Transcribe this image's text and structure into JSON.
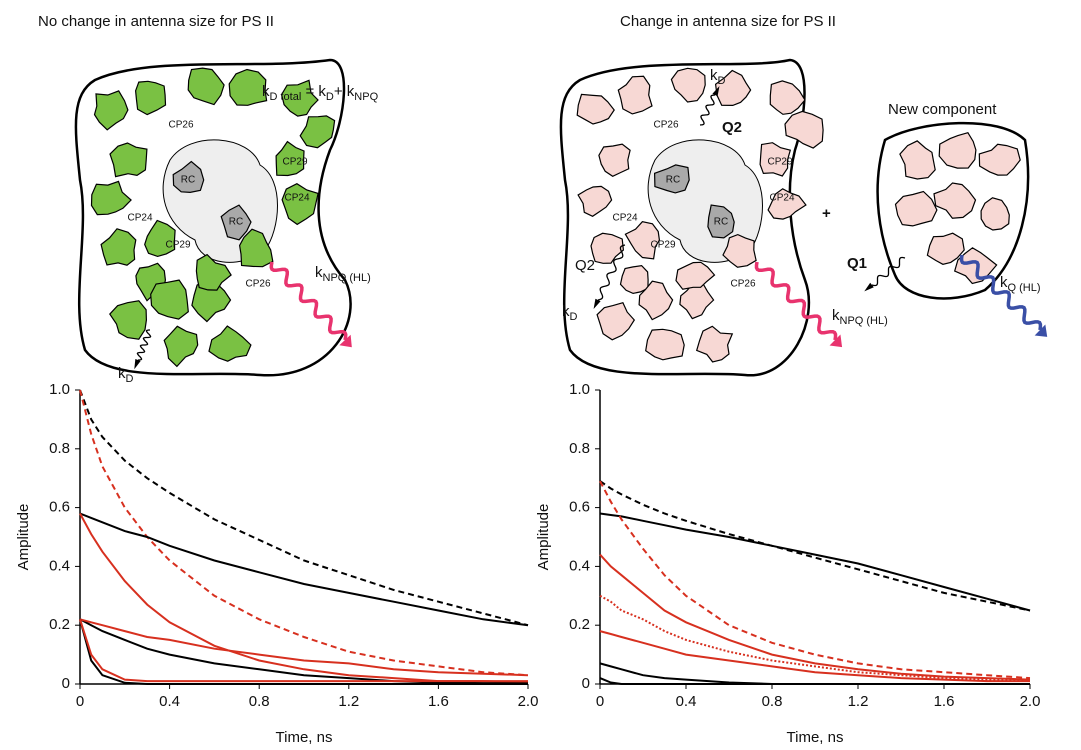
{
  "panels": [
    {
      "title": "No change in antenna size for PS II",
      "equation": [
        "k",
        "D total",
        " = k",
        "D",
        "+ k",
        "NPQ"
      ],
      "proteins": [
        "CP26",
        "CP29",
        "CP24",
        "CP24",
        "CP29",
        "CP26",
        "RC",
        "RC"
      ],
      "rates": [
        [
          "k",
          "D"
        ],
        [
          "k",
          "NPQ (HL)"
        ]
      ]
    },
    {
      "title": "Change in antenna size for PS II",
      "proteins": [
        "CP26",
        "CP29",
        "CP24",
        "CP24",
        "CP29",
        "CP26",
        "RC",
        "RC"
      ],
      "rates": [
        [
          "k",
          "D"
        ],
        [
          "k",
          "D"
        ],
        [
          "k",
          "NPQ (HL)"
        ],
        [
          "k",
          "Q (HL)"
        ]
      ],
      "quenchers": [
        "Q2",
        "Q2",
        "Q1"
      ],
      "plus": "+",
      "new_component": "New component"
    }
  ],
  "chart_data": [
    {
      "type": "line",
      "ylabel": "Amplitude",
      "xlabel": "Time, ns",
      "xlim": [
        0,
        2
      ],
      "ylim": [
        0,
        1
      ],
      "xticks": [
        0,
        0.4,
        0.8,
        1.2,
        1.6,
        {
          "value": 2,
          "label": "2.0"
        }
      ],
      "yticks": [
        0,
        0.2,
        0.4,
        0.6,
        0.8,
        {
          "value": 1,
          "label": "1.0"
        }
      ],
      "x": [
        0,
        0.05,
        0.1,
        0.2,
        0.3,
        0.4,
        0.6,
        0.8,
        1.0,
        1.2,
        1.4,
        1.6,
        1.8,
        2.0
      ],
      "series": [
        {
          "color": "#000000",
          "style": "dashed",
          "values": [
            1.0,
            0.9,
            0.84,
            0.76,
            0.7,
            0.65,
            0.56,
            0.49,
            0.42,
            0.37,
            0.32,
            0.28,
            0.24,
            0.2
          ]
        },
        {
          "color": "#d7301f",
          "style": "dashed",
          "values": [
            1.0,
            0.85,
            0.74,
            0.6,
            0.5,
            0.42,
            0.3,
            0.22,
            0.16,
            0.11,
            0.08,
            0.06,
            0.04,
            0.03
          ]
        },
        {
          "color": "#000000",
          "style": "solid",
          "values": [
            0.58,
            0.565,
            0.55,
            0.52,
            0.5,
            0.47,
            0.42,
            0.38,
            0.34,
            0.31,
            0.28,
            0.25,
            0.22,
            0.2
          ]
        },
        {
          "color": "#d7301f",
          "style": "solid",
          "values": [
            0.58,
            0.51,
            0.45,
            0.35,
            0.27,
            0.21,
            0.13,
            0.08,
            0.05,
            0.03,
            0.02,
            0.01,
            0.01,
            0.005
          ]
        },
        {
          "color": "#000000",
          "style": "solid",
          "values": [
            0.22,
            0.2,
            0.18,
            0.15,
            0.12,
            0.1,
            0.07,
            0.05,
            0.03,
            0.02,
            0.01,
            0.005,
            0.003,
            0.002
          ]
        },
        {
          "color": "#d7301f",
          "style": "solid",
          "values": [
            0.22,
            0.21,
            0.2,
            0.18,
            0.16,
            0.15,
            0.12,
            0.1,
            0.08,
            0.07,
            0.05,
            0.04,
            0.035,
            0.03
          ]
        },
        {
          "color": "#000000",
          "style": "solid",
          "values": [
            0.22,
            0.08,
            0.03,
            0.004,
            0,
            0,
            0,
            0,
            0,
            0,
            0,
            0,
            0,
            0
          ]
        },
        {
          "color": "#d7301f",
          "style": "solid",
          "values": [
            0.22,
            0.1,
            0.05,
            0.015,
            0.01,
            0.01,
            0.01,
            0.01,
            0.01,
            0.01,
            0.01,
            0.01,
            0.01,
            0.01
          ]
        }
      ]
    },
    {
      "type": "line",
      "ylabel": "Amplitude",
      "xlabel": "Time, ns",
      "xlim": [
        0,
        2
      ],
      "ylim": [
        0,
        1
      ],
      "xticks": [
        0,
        0.4,
        0.8,
        1.2,
        1.6,
        {
          "value": 2,
          "label": "2.0"
        }
      ],
      "yticks": [
        0,
        0.2,
        0.4,
        0.6,
        0.8,
        {
          "value": 1,
          "label": "1.0"
        }
      ],
      "x": [
        0,
        0.05,
        0.1,
        0.2,
        0.3,
        0.4,
        0.6,
        0.8,
        1.0,
        1.2,
        1.4,
        1.6,
        1.8,
        2.0
      ],
      "series": [
        {
          "color": "#000000",
          "style": "dashed",
          "values": [
            0.69,
            0.665,
            0.645,
            0.61,
            0.58,
            0.555,
            0.51,
            0.47,
            0.43,
            0.39,
            0.35,
            0.31,
            0.28,
            0.25
          ]
        },
        {
          "color": "#000000",
          "style": "solid",
          "values": [
            0.58,
            0.575,
            0.57,
            0.555,
            0.54,
            0.525,
            0.5,
            0.47,
            0.44,
            0.41,
            0.37,
            0.33,
            0.29,
            0.25
          ]
        },
        {
          "color": "#d7301f",
          "style": "dashed",
          "values": [
            0.69,
            0.62,
            0.56,
            0.46,
            0.37,
            0.3,
            0.2,
            0.14,
            0.1,
            0.07,
            0.05,
            0.04,
            0.03,
            0.02
          ]
        },
        {
          "color": "#d7301f",
          "style": "solid",
          "values": [
            0.44,
            0.4,
            0.37,
            0.31,
            0.25,
            0.21,
            0.15,
            0.1,
            0.07,
            0.05,
            0.035,
            0.025,
            0.02,
            0.015
          ]
        },
        {
          "color": "#d7301f",
          "style": "dotted",
          "values": [
            0.3,
            0.28,
            0.25,
            0.22,
            0.18,
            0.15,
            0.11,
            0.08,
            0.06,
            0.04,
            0.03,
            0.02,
            0.015,
            0.01
          ]
        },
        {
          "color": "#d7301f",
          "style": "solid",
          "values": [
            0.18,
            0.17,
            0.16,
            0.14,
            0.12,
            0.1,
            0.08,
            0.06,
            0.04,
            0.03,
            0.02,
            0.015,
            0.01,
            0.01
          ]
        },
        {
          "color": "#000000",
          "style": "solid",
          "values": [
            0.07,
            0.06,
            0.05,
            0.03,
            0.02,
            0.015,
            0.005,
            0,
            0,
            0,
            0,
            0,
            0,
            0
          ]
        },
        {
          "color": "#000000",
          "style": "solid",
          "values": [
            0.02,
            0.005,
            0,
            0,
            0,
            0,
            0,
            0,
            0,
            0,
            0,
            0,
            0,
            0
          ]
        }
      ]
    }
  ]
}
